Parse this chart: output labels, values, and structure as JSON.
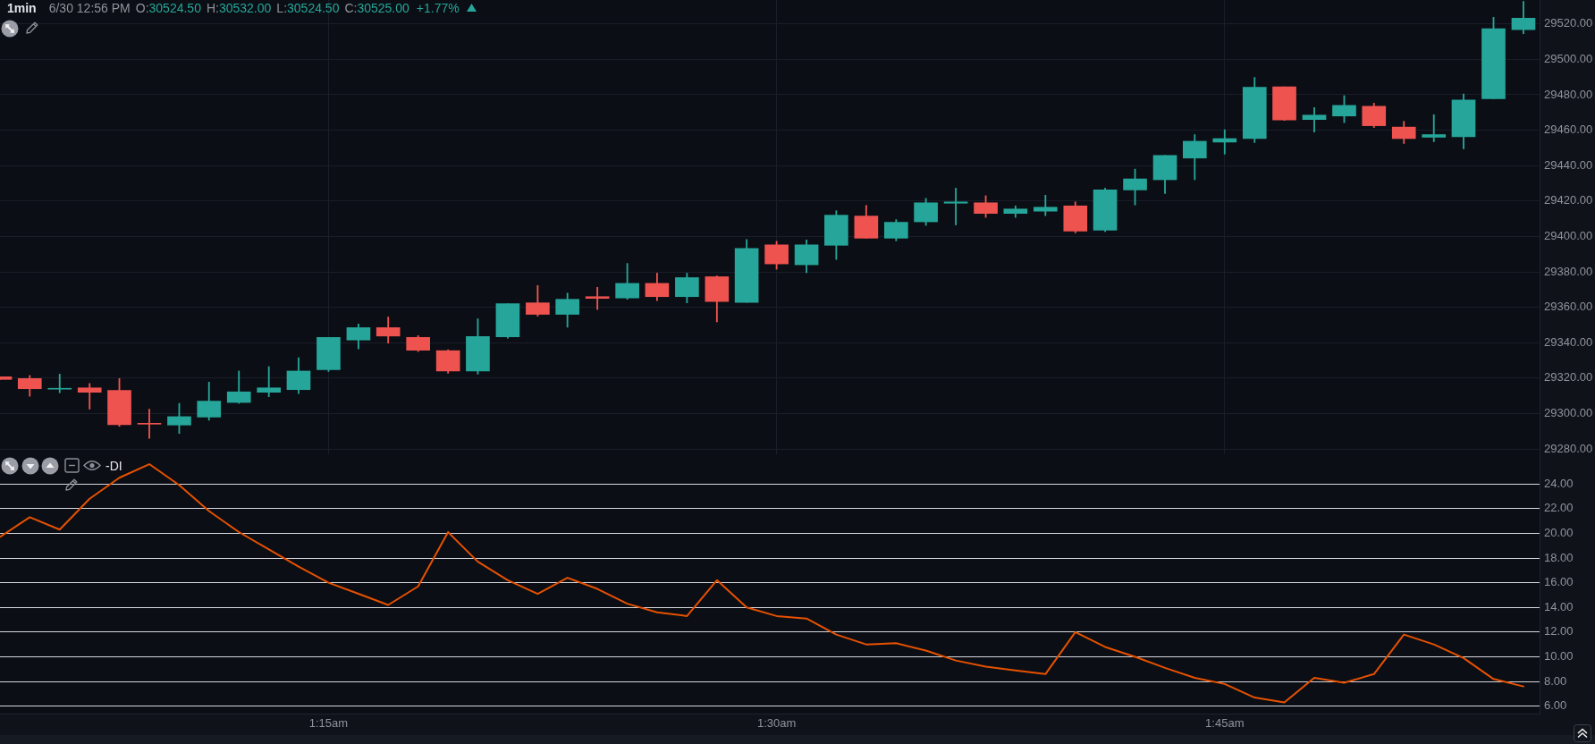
{
  "chart_data": [
    {
      "type": "candlestick",
      "title": "1min",
      "annotations": [
        "6/30 12:56 PM",
        "O:30524.50",
        "H:30532.00",
        "L:30524.50",
        "C:30525.00",
        "+1.77%"
      ],
      "x": [
        1.0667,
        1.0833,
        1.1,
        1.1167,
        1.1333,
        1.15,
        1.1667,
        1.1833,
        1.2,
        1.2167,
        1.2333,
        1.25,
        1.2667,
        1.2833,
        1.3,
        1.3167,
        1.3333,
        1.35,
        1.3667,
        1.3833,
        1.4,
        1.4167,
        1.4333,
        1.45,
        1.4667,
        1.4833,
        1.5,
        1.5167,
        1.5333,
        1.55,
        1.5667,
        1.5833,
        1.6,
        1.6167,
        1.6333,
        1.65,
        1.6667,
        1.6833,
        1.7,
        1.7167,
        1.7333,
        1.75,
        1.7667,
        1.7833,
        1.8,
        1.8167,
        1.8333,
        1.85,
        1.8667,
        1.8833,
        1.9,
        1.9167
      ],
      "ohlc": [
        [
          29320.75,
          29320.75,
          29319.25,
          29319.25
        ],
        [
          29319.75,
          29321.5,
          29309.75,
          29314
        ],
        [
          29313.75,
          29322.25,
          29311.75,
          29314.25
        ],
        [
          29314.5,
          29317,
          29302.5,
          29312
        ],
        [
          29313,
          29319.75,
          29292.75,
          29293.75
        ],
        [
          29294.5,
          29302.5,
          29286,
          29294
        ],
        [
          29293.5,
          29305.75,
          29288.75,
          29298.25
        ],
        [
          29298,
          29317.75,
          29296.25,
          29307
        ],
        [
          29306.25,
          29324,
          29305.75,
          29312.25
        ],
        [
          29312,
          29326.5,
          29309.5,
          29314.5
        ],
        [
          29313.5,
          29331.5,
          29311.25,
          29324
        ],
        [
          29324.75,
          29343,
          29323.75,
          29343
        ],
        [
          29341.5,
          29350.5,
          29336.5,
          29348.5
        ],
        [
          29348.5,
          29354.5,
          29339.75,
          29343.75
        ],
        [
          29343,
          29344,
          29335,
          29335.75
        ],
        [
          29335.5,
          29336,
          29322.75,
          29324
        ],
        [
          29324,
          29353.5,
          29322.25,
          29343.5
        ],
        [
          29343.25,
          29362,
          29342.5,
          29362
        ],
        [
          29362.5,
          29372.25,
          29355,
          29356
        ],
        [
          29356,
          29368,
          29348.75,
          29364.5
        ],
        [
          29366,
          29371.25,
          29358.75,
          29365
        ],
        [
          29365.25,
          29384.75,
          29364.5,
          29373.5
        ],
        [
          29373.5,
          29379.25,
          29363.75,
          29366
        ],
        [
          29366,
          29379.25,
          29362.5,
          29376.75
        ],
        [
          29377.25,
          29377.75,
          29351.75,
          29363.25
        ],
        [
          29362.75,
          29398.25,
          29362.75,
          29393.25
        ],
        [
          29395.25,
          29397.25,
          29381.5,
          29384.5
        ],
        [
          29384,
          29398,
          29379.5,
          29395.25
        ],
        [
          29395,
          29414.5,
          29387,
          29412
        ],
        [
          29411.5,
          29417.5,
          29399,
          29399
        ],
        [
          29399,
          29409.5,
          29397.5,
          29408
        ],
        [
          29408.25,
          29421.5,
          29406.25,
          29419
        ],
        [
          29418.75,
          29427.25,
          29406.5,
          29419.5
        ],
        [
          29419,
          29423,
          29410.75,
          29413
        ],
        [
          29413,
          29417.25,
          29410.75,
          29415.5
        ],
        [
          29414.25,
          29423.25,
          29411.75,
          29416.5
        ],
        [
          29417.25,
          29419.5,
          29402,
          29403
        ],
        [
          29403.5,
          29427.25,
          29402.75,
          29426.25
        ],
        [
          29426.25,
          29438,
          29417.75,
          29432.5
        ],
        [
          29432,
          29445.75,
          29424.25,
          29445.75
        ],
        [
          29444.25,
          29457.5,
          29432,
          29453.75
        ],
        [
          29453.25,
          29460.25,
          29446.5,
          29455.25
        ],
        [
          29455.25,
          29489.75,
          29453,
          29484.25
        ],
        [
          29484.5,
          29484.5,
          29465.5,
          29465.75
        ],
        [
          29466,
          29472.75,
          29459,
          29468.5
        ],
        [
          29468,
          29479.5,
          29464.25,
          29474
        ],
        [
          29473.5,
          29475.25,
          29461.5,
          29462.5
        ],
        [
          29461.75,
          29465,
          29452.5,
          29455.25
        ],
        [
          29456,
          29468.75,
          29453.5,
          29457.5
        ],
        [
          29456.25,
          29480.5,
          29449.5,
          29477
        ],
        [
          29477.75,
          29523.75,
          29477.75,
          29517.25
        ],
        [
          29516.75,
          29532.75,
          29514.5,
          29523.25
        ]
      ],
      "colors": [
        "#ef5350",
        "#ef5350",
        "#26a69a",
        "#ef5350",
        "#ef5350",
        "#ef5350",
        "#26a69a",
        "#26a69a",
        "#26a69a",
        "#26a69a",
        "#26a69a",
        "#26a69a",
        "#26a69a",
        "#ef5350",
        "#ef5350",
        "#ef5350",
        "#26a69a",
        "#26a69a",
        "#ef5350",
        "#26a69a",
        "#ef5350",
        "#26a69a",
        "#ef5350",
        "#26a69a",
        "#ef5350",
        "#26a69a",
        "#ef5350",
        "#26a69a",
        "#26a69a",
        "#ef5350",
        "#26a69a",
        "#26a69a",
        "#26a69a",
        "#ef5350",
        "#26a69a",
        "#26a69a",
        "#ef5350",
        "#26a69a",
        "#26a69a",
        "#26a69a",
        "#26a69a",
        "#26a69a",
        "#26a69a",
        "#ef5350",
        "#26a69a",
        "#26a69a",
        "#ef5350",
        "#ef5350",
        "#26a69a",
        "#26a69a",
        "#26a69a",
        "#26a69a"
      ],
      "xlim": [
        1.0667,
        1.9257
      ],
      "xticks": [
        {
          "value": 1.25,
          "label": null
        },
        {
          "value": 1.5,
          "label": null
        },
        {
          "value": 1.75,
          "label": null
        }
      ],
      "ylim": [
        29277,
        29533.5
      ],
      "yticks": [
        {
          "value": 29280,
          "label": "29280.00"
        },
        {
          "value": 29300,
          "label": "29300.00"
        },
        {
          "value": 29320,
          "label": "29320.00"
        },
        {
          "value": 29340,
          "label": "29340.00"
        },
        {
          "value": 29360,
          "label": "29360.00"
        },
        {
          "value": 29380,
          "label": "29380.00"
        },
        {
          "value": 29400,
          "label": "29400.00"
        },
        {
          "value": 29420,
          "label": "29420.00"
        },
        {
          "value": 29440,
          "label": "29440.00"
        },
        {
          "value": 29460,
          "label": "29460.00"
        },
        {
          "value": 29480,
          "label": "29480.00"
        },
        {
          "value": 29500,
          "label": "29500.00"
        },
        {
          "value": 29520,
          "label": "29520.00"
        }
      ],
      "grid": true,
      "tick_labels": "y"
    },
    {
      "type": "line",
      "title": "-DI",
      "x": [
        1.0667,
        1.0833,
        1.1,
        1.1167,
        1.1333,
        1.15,
        1.1667,
        1.1833,
        1.2,
        1.2167,
        1.2333,
        1.25,
        1.2667,
        1.2833,
        1.3,
        1.3167,
        1.3333,
        1.35,
        1.3667,
        1.3833,
        1.4,
        1.4167,
        1.4333,
        1.45,
        1.4667,
        1.4833,
        1.5,
        1.5167,
        1.5333,
        1.55,
        1.5667,
        1.5833,
        1.6,
        1.6167,
        1.6333,
        1.65,
        1.6667,
        1.6833,
        1.7,
        1.7167,
        1.7333,
        1.75,
        1.7667,
        1.7833,
        1.8,
        1.8167,
        1.8333,
        1.85,
        1.8667,
        1.8833,
        1.9,
        1.9167
      ],
      "series": [
        {
          "color": "#e65100",
          "values": [
            19.7,
            21.3,
            20.3,
            22.8,
            24.5,
            25.6,
            23.9,
            21.8,
            20.1,
            18.7,
            17.3,
            16.0,
            15.1,
            14.2,
            15.7,
            20.1,
            17.7,
            16.2,
            15.1,
            16.4,
            15.5,
            14.3,
            13.6,
            13.3,
            16.2,
            14.0,
            13.3,
            13.1,
            11.8,
            11.0,
            11.1,
            10.5,
            9.7,
            9.2,
            8.9,
            8.6,
            12.0,
            10.8,
            10.0,
            9.1,
            8.3,
            7.8,
            6.7,
            6.3,
            8.3,
            7.9,
            8.6,
            11.8,
            11.0,
            9.9,
            8.2,
            7.6
          ]
        }
      ],
      "xlim": [
        1.0667,
        1.9257
      ],
      "xticks": [
        {
          "value": 1.25,
          "label": "1:15am"
        },
        {
          "value": 1.5,
          "label": "1:30am"
        },
        {
          "value": 1.75,
          "label": "1:45am"
        }
      ],
      "ylim": [
        5.4,
        26.4
      ],
      "yticks": [
        {
          "value": 6,
          "label": "6.00"
        },
        {
          "value": 8,
          "label": "8.00"
        },
        {
          "value": 10,
          "label": "10.00"
        },
        {
          "value": 12,
          "label": "12.00"
        },
        {
          "value": 14,
          "label": "14.00"
        },
        {
          "value": 16,
          "label": "16.00"
        },
        {
          "value": 18,
          "label": "18.00"
        },
        {
          "value": 20,
          "label": "20.00"
        },
        {
          "value": 22,
          "label": "22.00"
        },
        {
          "value": 24,
          "label": "24.00"
        }
      ],
      "grid": "y",
      "marker": "none",
      "line_style": "solid"
    }
  ]
}
